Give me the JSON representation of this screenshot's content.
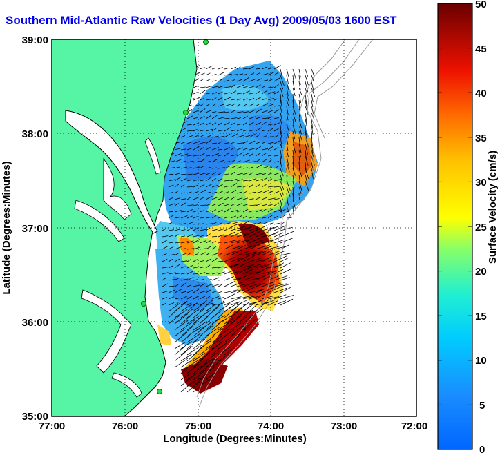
{
  "title": "Southern Mid-Atlantic Raw Velocities (1 Day Avg) 2009/05/03 1600 EST",
  "xaxis": {
    "label": "Longitude (Degrees:Minutes)",
    "ticks": [
      "77:00",
      "76:00",
      "75:00",
      "74:00",
      "73:00",
      "72:00"
    ],
    "range": [
      -77,
      -72
    ]
  },
  "yaxis": {
    "label": "Latitude (Degrees:Minutes)",
    "ticks": [
      "39:00",
      "38:00",
      "37:00",
      "36:00",
      "35:00"
    ],
    "range": [
      35,
      39
    ]
  },
  "colorbar": {
    "label": "Surface Velocity (cm/s)",
    "ticks": [
      "50",
      "45",
      "40",
      "35",
      "30",
      "25",
      "20",
      "15",
      "10",
      "5",
      "0"
    ],
    "range": [
      0,
      50
    ],
    "colormap": "jet"
  },
  "colors": {
    "land": "#55f5a5",
    "coastline": "#000000",
    "bathymetry": "#999999",
    "vectors": "#000000",
    "gridlines": "#000000",
    "title": "#0000ee"
  },
  "grid": true
}
